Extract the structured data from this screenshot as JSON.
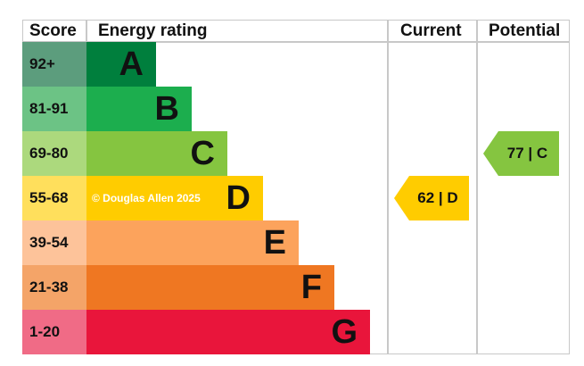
{
  "chart_data": {
    "type": "bar",
    "headers": {
      "score": "Score",
      "rating": "Energy rating",
      "current": "Current",
      "potential": "Potential"
    },
    "bands": [
      {
        "letter": "A",
        "range": "92+",
        "color": "#007f3d",
        "score_color": "#5c9d7d"
      },
      {
        "letter": "B",
        "range": "81-91",
        "color": "#1cae4e",
        "score_color": "#6cc385"
      },
      {
        "letter": "C",
        "range": "69-80",
        "color": "#85c540",
        "score_color": "#acd97d"
      },
      {
        "letter": "D",
        "range": "55-68",
        "color": "#ffcc00",
        "score_color": "#ffdf5c"
      },
      {
        "letter": "E",
        "range": "39-54",
        "color": "#fca35c",
        "score_color": "#fdc39a"
      },
      {
        "letter": "F",
        "range": "21-38",
        "color": "#ef7722",
        "score_color": "#f4a468"
      },
      {
        "letter": "G",
        "range": "1-20",
        "color": "#e9153b",
        "score_color": "#f06b86"
      }
    ],
    "current": {
      "value": 62,
      "band": "D",
      "label": "62 | D",
      "color": "#ffcc00"
    },
    "potential": {
      "value": 77,
      "band": "C",
      "label": "77 | C",
      "color": "#85c540"
    },
    "watermark": "© Douglas Allen 2025"
  }
}
